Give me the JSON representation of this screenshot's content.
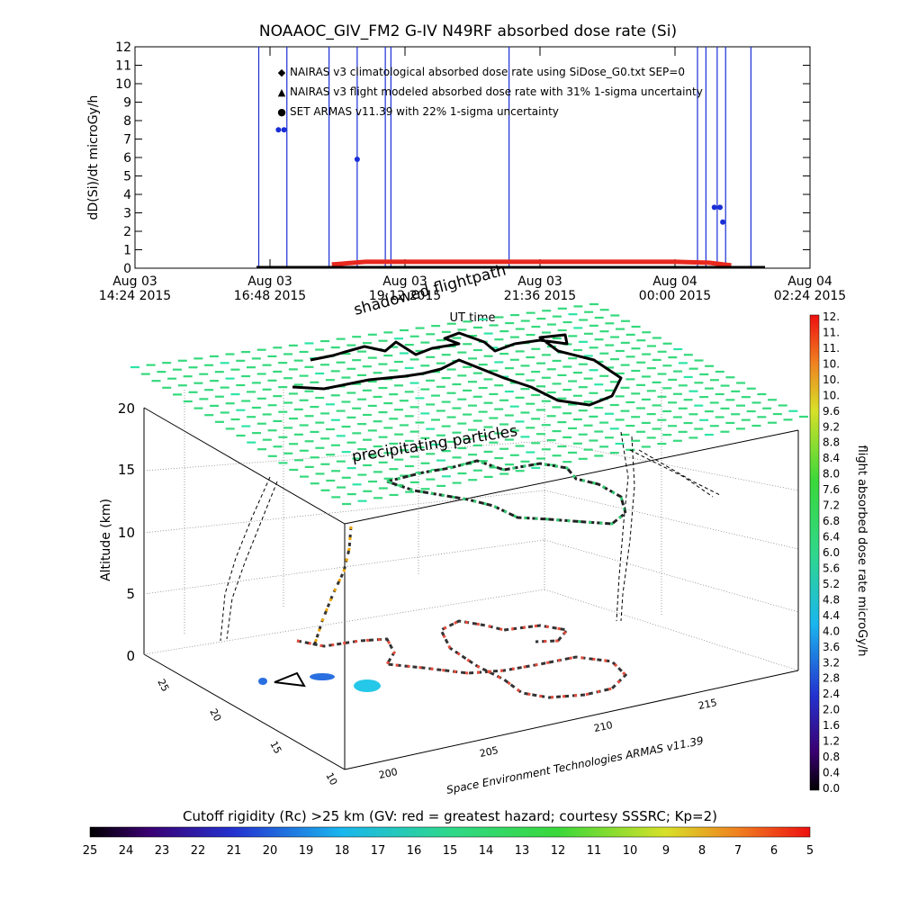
{
  "chart_data": [
    {
      "type": "line",
      "title": "NOAAOC_GIV_FM2 G-IV    N49RF  absorbed dose rate (Si)",
      "ylabel": "dD(Si)/dt microGy/h",
      "xlabel": "UT time",
      "ylim": [
        0,
        12
      ],
      "yticks": [
        "0",
        "1",
        "2",
        "3",
        "4",
        "5",
        "6",
        "7",
        "8",
        "9",
        "10",
        "11",
        "12"
      ],
      "xticks": [
        {
          "line1": "Aug 03",
          "line2": "14:24 2015"
        },
        {
          "line1": "Aug 03",
          "line2": "16:48 2015"
        },
        {
          "line1": "Aug 03",
          "line2": "19:12 2015"
        },
        {
          "line1": "Aug 03",
          "line2": "21:36 2015"
        },
        {
          "line1": "Aug 04",
          "line2": "00:00 2015"
        },
        {
          "line1": "Aug 04",
          "line2": "02:24 2015"
        }
      ],
      "legend_placement": "top-left",
      "legend": [
        {
          "symbol": "◆",
          "color": "#e8281e",
          "text": "NAIRAS v3 climatological absorbed dose rate using SiDose_G0.txt SEP=0"
        },
        {
          "symbol": "▲",
          "color": "#000000",
          "text": "NAIRAS v3 flight modeled absorbed dose rate with 31% 1-sigma uncertainty"
        },
        {
          "symbol": "●",
          "color": "#1a2fd6",
          "text": "SET ARMAS v11.39 with 22% 1-sigma uncertainty"
        }
      ],
      "series": [
        {
          "name": "NAIRAS v3 climatological absorbed dose rate using SiDose_G0.txt SEP=0",
          "color": "#e8281e",
          "x_hours": [
            17.9,
            18.5,
            19.0,
            20.0,
            21.0,
            22.0,
            23.0,
            24.0,
            24.6,
            25.0
          ],
          "values": [
            0.15,
            0.3,
            0.3,
            0.3,
            0.3,
            0.3,
            0.3,
            0.3,
            0.25,
            0.1
          ]
        },
        {
          "name": "SET ARMAS v11.39 with 22% 1-sigma uncertainty",
          "color": "#1a2fd6",
          "points": [
            {
              "x_hours": 16.95,
              "y": 7.5
            },
            {
              "x_hours": 17.05,
              "y": 7.5
            },
            {
              "x_hours": 18.35,
              "y": 5.9
            },
            {
              "x_hours": 24.7,
              "y": 3.3
            },
            {
              "x_hours": 24.8,
              "y": 3.3
            },
            {
              "x_hours": 24.85,
              "y": 2.5
            }
          ],
          "spikes_x_hours": [
            16.6,
            17.1,
            17.85,
            18.35,
            18.85,
            18.95,
            21.05,
            24.4,
            24.55,
            24.75,
            24.9,
            25.35
          ]
        }
      ]
    },
    {
      "type": "scatter",
      "annotations": {
        "shadowed": "shadowed flightpath",
        "particles": "precipitating particles",
        "credit": "Space Environment Technologies ARMAS v11.39"
      },
      "zlabel": "Altitude (km)",
      "zticks": [
        "0",
        "5",
        "10",
        "15",
        "20"
      ],
      "lat_ticks": [
        "25",
        "20",
        "15",
        "10"
      ],
      "lon_ticks": [
        "200",
        "205",
        "210",
        "215"
      ],
      "colorbar_right": {
        "label": "flight absorbed dose rate microGy/h",
        "ticks": [
          "12.",
          "11.",
          "11.",
          "10.",
          "10.",
          "10.",
          "9.6",
          "9.2",
          "8.8",
          "8.4",
          "8.0",
          "7.6",
          "7.2",
          "6.8",
          "6.4",
          "6.0",
          "5.6",
          "5.2",
          "4.8",
          "4.4",
          "4.0",
          "3.6",
          "3.2",
          "2.8",
          "2.4",
          "2.0",
          "1.6",
          "1.2",
          "0.8",
          "0.4",
          "0.0"
        ],
        "range": [
          0,
          12
        ]
      },
      "colorbar_bottom": {
        "label": "Cutoff rigidity (Rc) >25 km (GV: red = greatest hazard; courtesy SSSRC; Kp=2)",
        "ticks": [
          "25",
          "24",
          "23",
          "22",
          "21",
          "20",
          "19",
          "18",
          "17",
          "16",
          "15",
          "14",
          "13",
          "12",
          "11",
          "10",
          "9",
          "8",
          "7",
          "6",
          "5"
        ],
        "range": [
          25,
          5
        ]
      }
    }
  ]
}
